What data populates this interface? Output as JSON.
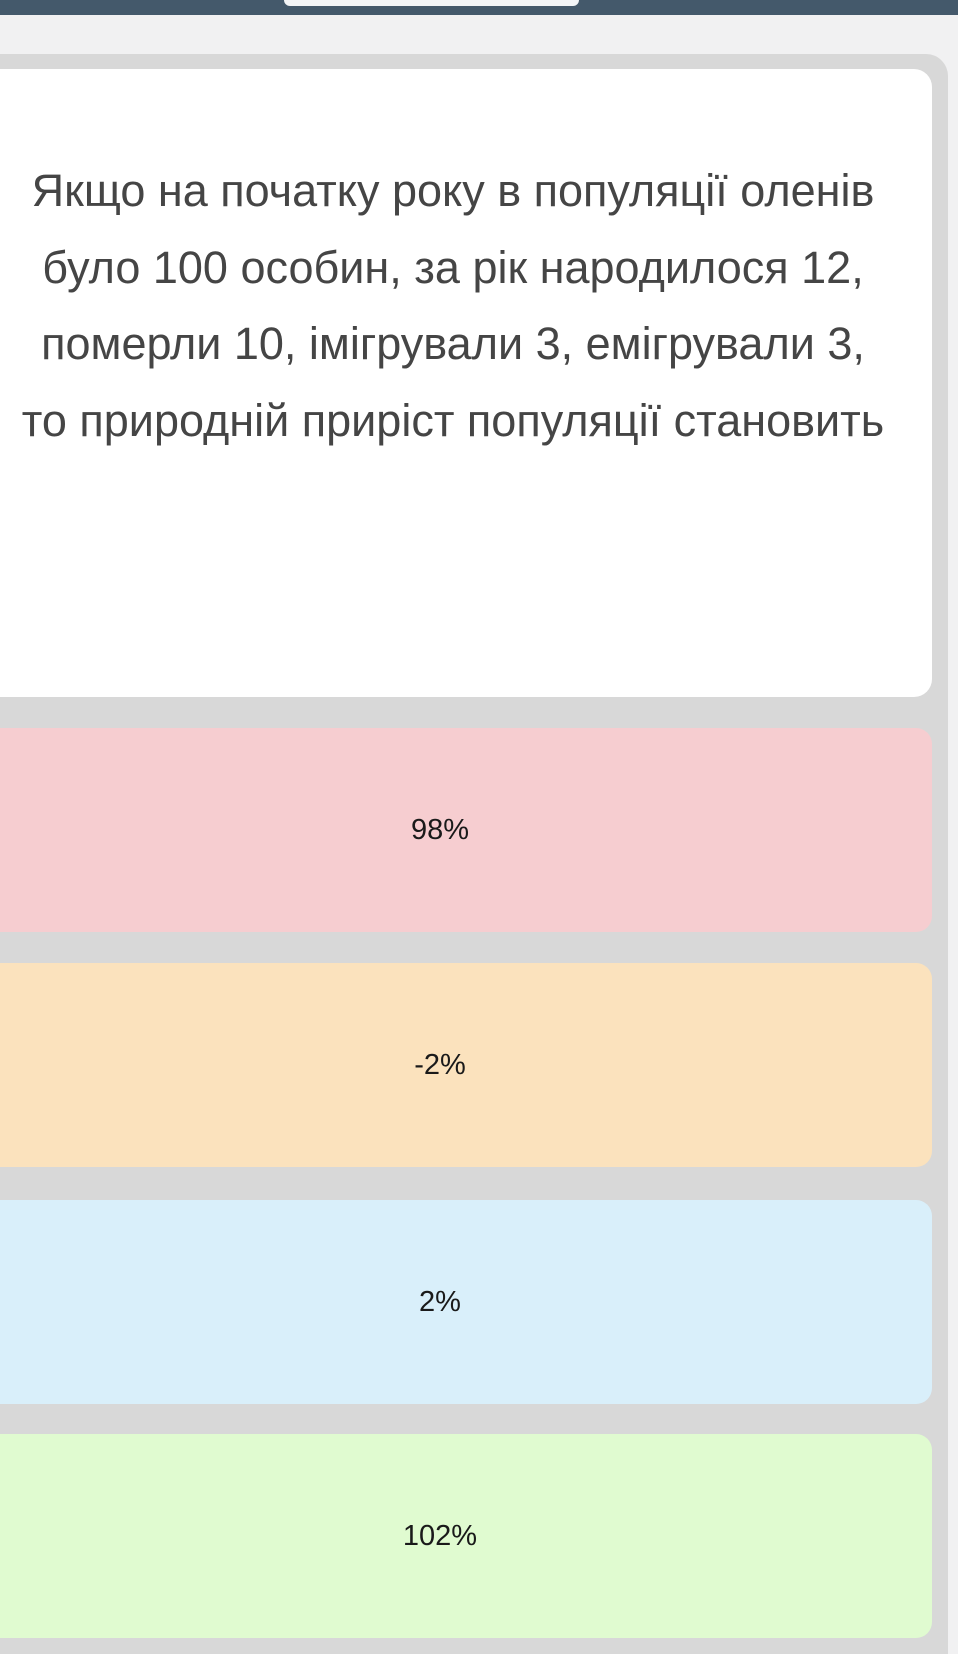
{
  "question": "Якщо на початку року в популяції оленів було 100 особин, за рік народилося 12, померли 10, імігрували 3, емігрували 3, то природній приріст популяції становить",
  "options": [
    {
      "label": "98%",
      "color": "#f6cdd0"
    },
    {
      "label": "-2%",
      "color": "#fbe2bd"
    },
    {
      "label": "2%",
      "color": "#d9effa"
    },
    {
      "label": "102%",
      "color": "#e0fbd0"
    }
  ],
  "colors": {
    "topbar": "#44596b",
    "background": "#f1f1f2",
    "frame": "#d8d8d8"
  }
}
